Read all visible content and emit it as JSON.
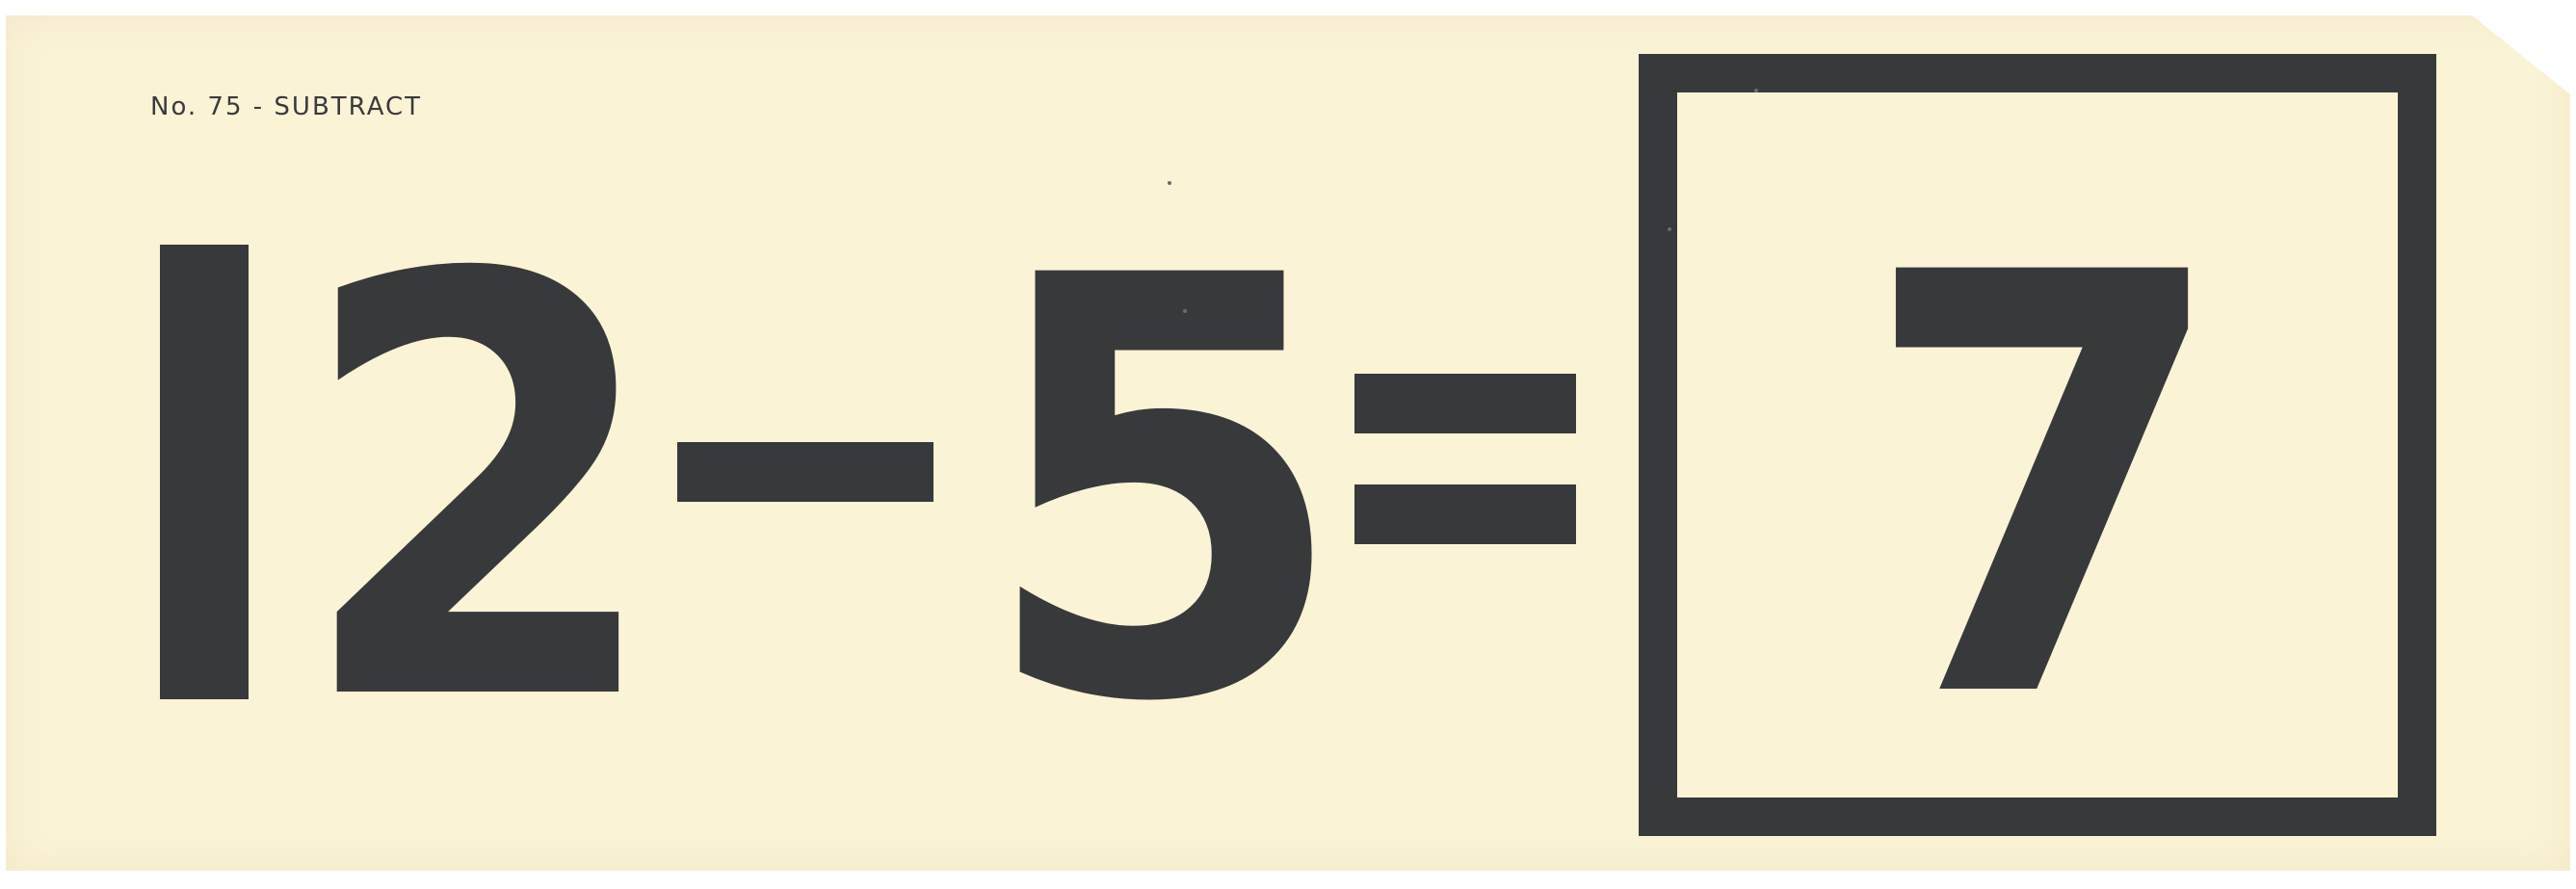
{
  "card": {
    "label": "No. 75 - SUBTRACT",
    "minuend_first_digit": "1",
    "minuend_second_digit": "2",
    "operator": "-",
    "subtrahend": "5",
    "equals": "=",
    "answer": "7"
  },
  "colors": {
    "paper": "#fbf3d6",
    "ink": "#38393b",
    "background": "#ffffff"
  }
}
